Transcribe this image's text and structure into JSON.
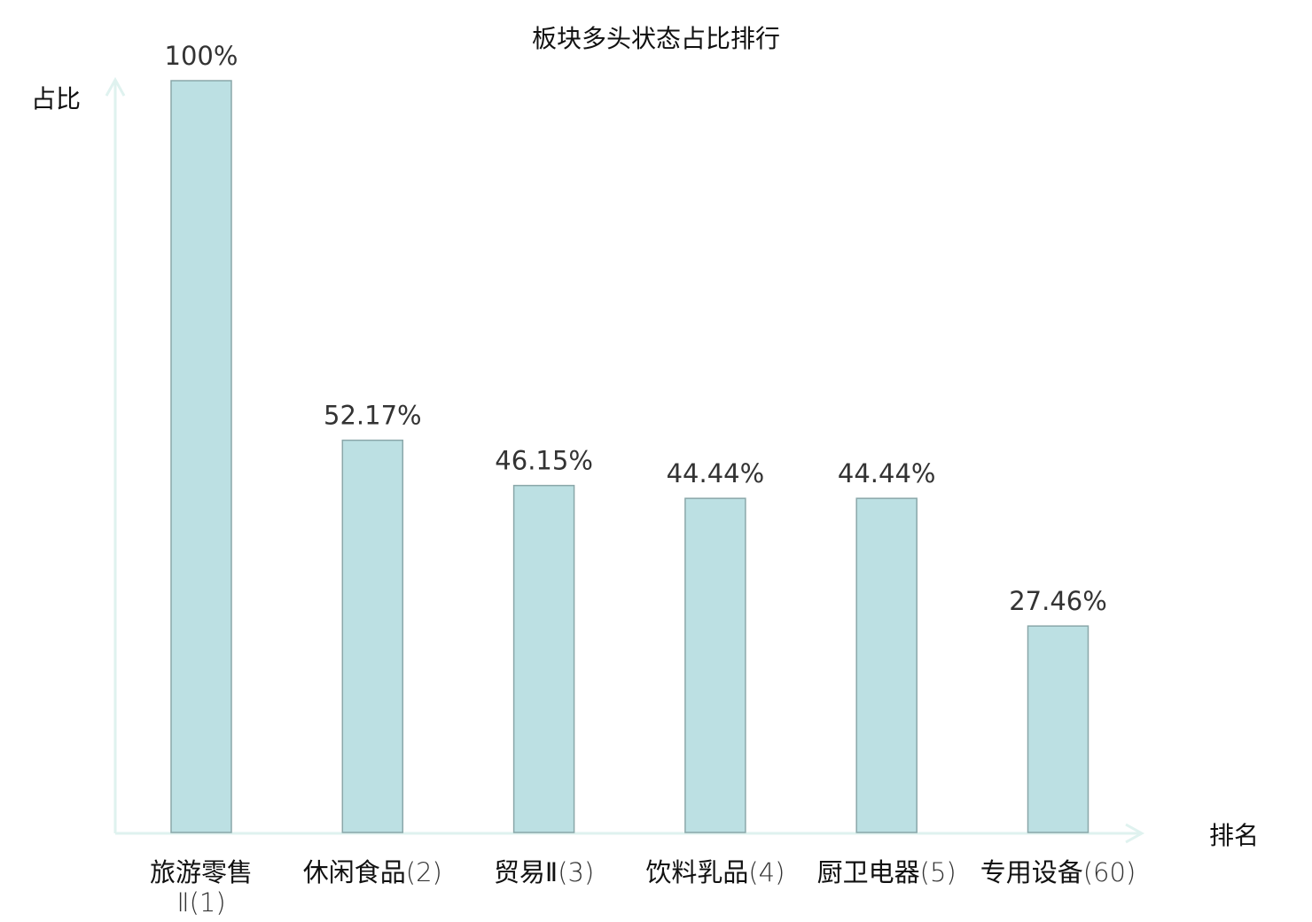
{
  "chart_data": {
    "type": "bar",
    "title": "板块多头状态占比排行",
    "xlabel": "排名",
    "ylabel": "占比",
    "ylim": [
      0,
      100
    ],
    "grid": false,
    "categories": [
      {
        "name": "旅游零售Ⅱ",
        "rank": "(1)",
        "highlight": false
      },
      {
        "name": "休闲食品",
        "rank": "(2)",
        "highlight": false
      },
      {
        "name": "贸易Ⅱ",
        "rank": "(3)",
        "highlight": false
      },
      {
        "name": "饮料乳品",
        "rank": "(4)",
        "highlight": false
      },
      {
        "name": "厨卫电器",
        "rank": "(5)",
        "highlight": false
      },
      {
        "name": "专用设备",
        "rank": "(60)",
        "highlight": true
      }
    ],
    "values": [
      100,
      52.17,
      46.15,
      44.44,
      44.44,
      27.46
    ],
    "data_labels": [
      "100%",
      "52.17%",
      "46.15%",
      "44.44%",
      "44.44%",
      "27.46%"
    ],
    "colors": {
      "bar_fill": "#bce0e3",
      "bar_stroke": "#8aa7a9",
      "axis": "#dff2ef",
      "highlight": "#ff0000"
    }
  }
}
